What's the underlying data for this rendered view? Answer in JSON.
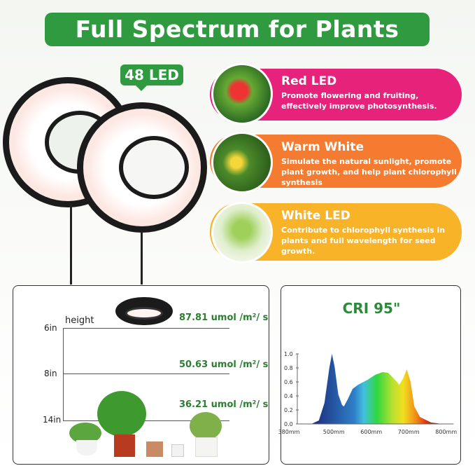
{
  "title": "Full Spectrum for Plants",
  "badge": "48 LED",
  "features": [
    {
      "title": "Red LED",
      "text": "Promote flowering and fruiting, effectively improve photosynthesis.",
      "color": "#e6227a"
    },
    {
      "title": "Warm White",
      "text": "Simulate the natural sunlight, promote plant growth, and help plant chlorophyll synthesis",
      "color": "#f47b2f"
    },
    {
      "title": "White LED",
      "text": "Contribute to chlorophyll synthesis in plants and full wavelength for seed growth.",
      "color": "#f8b329"
    }
  ],
  "height_panel": {
    "axis_label": "height",
    "rows": [
      {
        "height": "6in",
        "value": "87.81 umol /m²/ s"
      },
      {
        "height": "8in",
        "value": "50.63 umol /m²/ s"
      },
      {
        "height": "14in",
        "value": "36.21 umol /m²/ s"
      }
    ]
  },
  "chart_data": {
    "type": "area",
    "title": "CRI 95\"",
    "xlim": [
      380,
      820
    ],
    "ylim": [
      0,
      1.0
    ],
    "x_ticks": [
      "380mm",
      "500mm",
      "600mm",
      "700mm",
      "800mm"
    ],
    "y_ticks": [
      "0.0",
      "0.2",
      "0.4",
      "0.6",
      "0.8",
      "1.0"
    ],
    "x": [
      440,
      460,
      475,
      488,
      495,
      502,
      512,
      522,
      527,
      537,
      550,
      565,
      590,
      610,
      630,
      645,
      660,
      675,
      685,
      695,
      705,
      715,
      730,
      760,
      790
    ],
    "y": [
      0,
      0.05,
      0.3,
      0.8,
      1.0,
      0.82,
      0.42,
      0.27,
      0.25,
      0.35,
      0.5,
      0.56,
      0.63,
      0.7,
      0.74,
      0.73,
      0.65,
      0.56,
      0.65,
      0.78,
      0.6,
      0.25,
      0.1,
      0.02,
      0
    ]
  }
}
